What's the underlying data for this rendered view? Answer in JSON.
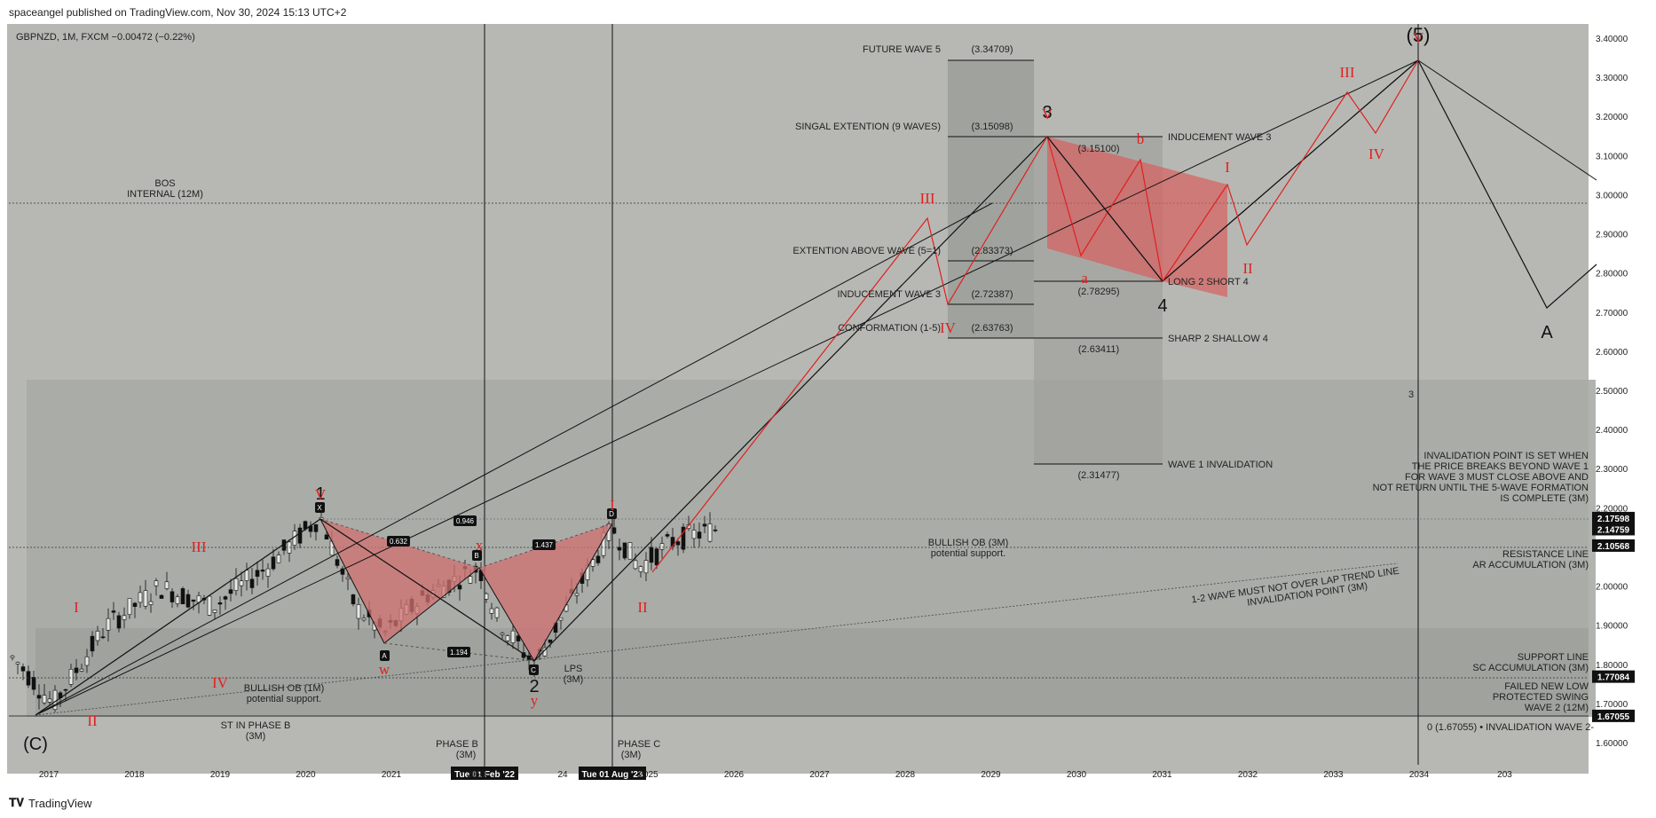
{
  "header": {
    "published": "spaceangel published on TradingView.com, Nov 30, 2024 15:13 UTC+2",
    "symbol": "GBPNZD, 1M, FXCM  −0.00472 (−0.22%)"
  },
  "footer": {
    "brand": "TradingView",
    "logo": "tradingview-logo"
  },
  "colors": {
    "background": "#b7b8b3",
    "zone_dark": "#a5a7a2",
    "zone_darker": "#9a9c98",
    "red": "#e02020",
    "red_fill": "#d56e6e",
    "black": "#111111"
  },
  "chart_data": {
    "type": "candlestick",
    "symbol": "GBPNZD",
    "timeframe": "1M",
    "x_ticks": [
      "2017",
      "2018",
      "2019",
      "2020",
      "2021",
      "Tue 01 Feb '22",
      "2023",
      "Tue 01 Aug '23",
      "24",
      "2025",
      "2026",
      "2027",
      "2028",
      "2029",
      "2030",
      "2031",
      "2032",
      "2033",
      "2034",
      "203"
    ],
    "y_ticks": [
      "3.40000",
      "3.30000",
      "3.20000",
      "3.10000",
      "3.00000",
      "2.90000",
      "2.80000",
      "2.70000",
      "2.60000",
      "2.50000",
      "2.40000",
      "2.30000",
      "2.20000",
      "2.10000",
      "2.00000",
      "1.90000",
      "1.80000",
      "1.70000",
      "1.60000"
    ],
    "ylim": [
      1.58,
      3.45
    ],
    "price_labels": [
      {
        "value": 2.17598,
        "text": "2.17598"
      },
      {
        "value": 2.14759,
        "text": "2.14759"
      },
      {
        "value": 2.10568,
        "text": "2.10568"
      },
      {
        "value": 1.77084,
        "text": "1.77084"
      },
      {
        "value": 1.67055,
        "text": "1.67055"
      }
    ],
    "fib_levels": [
      {
        "label": "FUTURE WAVE 5",
        "value_text": "(3.34709)",
        "value": 3.34709
      },
      {
        "label": "SINGAL EXTENTION (9 WAVES)",
        "value_text": "(3.15098)",
        "value": 3.15098
      },
      {
        "label": "EXTENTION ABOVE WAVE (5=1)",
        "value_text": "(2.83373)",
        "value": 2.83373
      },
      {
        "label": "INDUCEMENT WAVE 3",
        "value_text": "(2.72387)",
        "value": 2.72387
      },
      {
        "label": "CONFORMATION (1-5)",
        "value_text": "(2.63763)",
        "value": 2.63763
      }
    ],
    "wave4_levels": [
      {
        "label": "INDUCEMENT WAVE 3",
        "value_text": "(3.15100)",
        "value": 3.151
      },
      {
        "label": "LONG 2 SHORT 4",
        "value_text": "(2.78295)",
        "value": 2.78295
      },
      {
        "label": "SHARP 2 SHALLOW 4",
        "value_text": "(2.63411)",
        "value": 2.63411
      },
      {
        "label": "WAVE 1 INVALIDATION",
        "value_text": "(2.31477)",
        "value": 2.31477
      }
    ],
    "annotations": {
      "bos": "BOS",
      "bos_sub": "INTERNAL (12M)",
      "bullish_ob_1m": "BULLISH OB (1M)",
      "potential_support": "potential support.",
      "bullish_ob_3m": "BULLISH OB (3M)",
      "st_phase_b": "ST IN PHASE B",
      "three_m": "(3M)",
      "phase_b": "PHASE B",
      "phase_c": "PHASE C",
      "lps": "LPS",
      "trend_line_1": "1-2 WAVE MUST NOT OVER LAP TREND LINE",
      "trend_line_2": "INVALIDATION POINT (3M)",
      "invalidation_1": "INVALIDATION POINT IS SET WHEN",
      "invalidation_2": "THE PRICE BREAKS BEYOND WAVE 1",
      "invalidation_3": "FOR WAVE 3 MUST CLOSE ABOVE AND",
      "invalidation_4": "NOT RETURN UNTIL THE 5-WAVE FORMATION",
      "invalidation_5": "IS COMPLETE (3M)",
      "resistance_1": "RESISTANCE LINE",
      "resistance_2": "AR ACCUMULATION (3M)",
      "support_1": "SUPPORT LINE",
      "support_2": "SC ACCUMULATION (3M)",
      "failed_1": "FAILED NEW LOW",
      "failed_2": "PROTECTED SWING",
      "failed_3": "WAVE 2 (12M)",
      "zero_line": "0 (1.67055) • INVALIDATION WAVE 2-",
      "zone_number": "3",
      "harmonic_ratios": [
        "0.632",
        "0.946",
        "1.437",
        "1.194"
      ],
      "harmonic_points": [
        "X",
        "A",
        "B",
        "C",
        "D"
      ],
      "waves_black": [
        "1",
        "2",
        "3",
        "4",
        "(5)",
        "(C)",
        "A"
      ],
      "waves_red": [
        "I",
        "II",
        "III",
        "IV",
        "V",
        "w",
        "x",
        "y",
        "a",
        "b",
        "I",
        "II",
        "III",
        "IV"
      ]
    }
  }
}
